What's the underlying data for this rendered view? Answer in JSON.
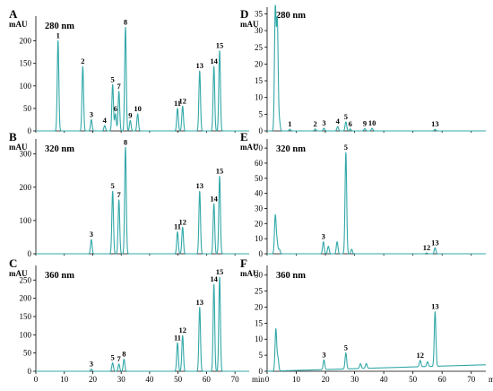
{
  "chart_data": [
    {
      "panel": "A",
      "wavelength": "280 nm",
      "ylabel": "mAU",
      "type": "line",
      "yticks": [
        0,
        50,
        100,
        150,
        200
      ],
      "xticks": [],
      "ylim": [
        0,
        255
      ],
      "xlim": [
        0,
        75
      ],
      "peaks": [
        {
          "label": "1",
          "t": 7.8,
          "h": 200
        },
        {
          "label": "2",
          "t": 16.5,
          "h": 143
        },
        {
          "label": "3",
          "t": 19.5,
          "h": 25
        },
        {
          "label": "4",
          "t": 24.2,
          "h": 12
        },
        {
          "label": "5",
          "t": 27.0,
          "h": 103
        },
        {
          "label": "6",
          "t": 28.0,
          "h": 38
        },
        {
          "label": "7",
          "t": 29.2,
          "h": 88
        },
        {
          "label": "8",
          "t": 31.5,
          "h": 230
        },
        {
          "label": "9",
          "t": 33.2,
          "h": 23
        },
        {
          "label": "10",
          "t": 35.8,
          "h": 38
        },
        {
          "label": "11",
          "t": 49.8,
          "h": 50
        },
        {
          "label": "12",
          "t": 51.6,
          "h": 55
        },
        {
          "label": "13",
          "t": 57.6,
          "h": 133
        },
        {
          "label": "14",
          "t": 62.6,
          "h": 143
        },
        {
          "label": "15",
          "t": 64.6,
          "h": 178
        }
      ]
    },
    {
      "panel": "B",
      "wavelength": "320 nm",
      "ylabel": "mAU",
      "type": "line",
      "yticks": [
        0,
        100,
        200,
        300
      ],
      "xticks": [],
      "ylim": [
        0,
        345
      ],
      "xlim": [
        0,
        75
      ],
      "peaks": [
        {
          "label": "3",
          "t": 19.5,
          "h": 43
        },
        {
          "label": "5",
          "t": 27.0,
          "h": 188
        },
        {
          "label": "7",
          "t": 29.2,
          "h": 162
        },
        {
          "label": "8",
          "t": 31.5,
          "h": 320
        },
        {
          "label": "11",
          "t": 49.8,
          "h": 66
        },
        {
          "label": "12",
          "t": 51.6,
          "h": 80
        },
        {
          "label": "13",
          "t": 57.6,
          "h": 188
        },
        {
          "label": "14",
          "t": 62.6,
          "h": 150
        },
        {
          "label": "15",
          "t": 64.6,
          "h": 233
        }
      ]
    },
    {
      "panel": "C",
      "wavelength": "360 nm",
      "ylabel": "mAU",
      "type": "line",
      "yticks": [
        0,
        50,
        100,
        150,
        200,
        250
      ],
      "xticks": [
        0,
        10,
        20,
        30,
        40,
        50,
        60,
        70
      ],
      "xunit": "min",
      "ylim": [
        0,
        290
      ],
      "xlim": [
        0,
        75
      ],
      "peaks": [
        {
          "label": "3",
          "t": 19.5,
          "h": 6
        },
        {
          "label": "5",
          "t": 27.0,
          "h": 23
        },
        {
          "label": "7",
          "t": 29.2,
          "h": 20
        },
        {
          "label": "8",
          "t": 31.0,
          "h": 33
        },
        {
          "label": "11",
          "t": 49.8,
          "h": 78
        },
        {
          "label": "12",
          "t": 51.6,
          "h": 98
        },
        {
          "label": "13",
          "t": 57.6,
          "h": 175
        },
        {
          "label": "14",
          "t": 62.6,
          "h": 238
        },
        {
          "label": "15",
          "t": 64.6,
          "h": 258
        }
      ]
    },
    {
      "panel": "D",
      "wavelength": "280 nm",
      "ylabel": "mAU",
      "type": "line",
      "yticks": [
        0,
        5,
        10,
        15,
        20,
        25,
        30,
        35
      ],
      "xticks": [],
      "ylim": [
        0,
        37
      ],
      "xlim": [
        0,
        75
      ],
      "peaks": [
        {
          "label": "",
          "t": 2.8,
          "h": 36.5
        },
        {
          "label": "",
          "t": 3.5,
          "h": 32
        },
        {
          "label": "",
          "t": 4.2,
          "h": 3
        },
        {
          "label": "1",
          "t": 7.8,
          "h": 0.5
        },
        {
          "label": "2",
          "t": 16.5,
          "h": 0.6
        },
        {
          "label": "3",
          "t": 19.5,
          "h": 0.8
        },
        {
          "label": "4",
          "t": 24.2,
          "h": 1.3
        },
        {
          "label": "5",
          "t": 27.0,
          "h": 2.7
        },
        {
          "label": "6",
          "t": 28.5,
          "h": 0.6
        },
        {
          "label": "9",
          "t": 33.5,
          "h": 0.7
        },
        {
          "label": "10",
          "t": 36.0,
          "h": 0.8
        },
        {
          "label": "13",
          "t": 57.6,
          "h": 0.5
        }
      ]
    },
    {
      "panel": "E",
      "wavelength": "320 nm",
      "ylabel": "mAU",
      "type": "line",
      "yticks": [
        0,
        10,
        20,
        30,
        40,
        50,
        60,
        70
      ],
      "xticks": [],
      "ylim": [
        0,
        76
      ],
      "xlim": [
        0,
        75
      ],
      "peaks": [
        {
          "label": "",
          "t": 2.8,
          "h": 25
        },
        {
          "label": "",
          "t": 3.4,
          "h": 8
        },
        {
          "label": "",
          "t": 4.2,
          "h": 3
        },
        {
          "label": "3",
          "t": 19.3,
          "h": 8
        },
        {
          "label": "",
          "t": 21.0,
          "h": 5
        },
        {
          "label": "",
          "t": 24.0,
          "h": 8
        },
        {
          "label": "5",
          "t": 27.0,
          "h": 67
        },
        {
          "label": "",
          "t": 29.0,
          "h": 3
        },
        {
          "label": "12",
          "t": 54.7,
          "h": 0.5
        },
        {
          "label": "13",
          "t": 57.6,
          "h": 4
        }
      ]
    },
    {
      "panel": "F",
      "wavelength": "360 nm",
      "ylabel": "mAU",
      "type": "line",
      "yticks": [
        0,
        5,
        10,
        15,
        20,
        25,
        30
      ],
      "xticks": [
        0,
        10,
        20,
        30,
        40,
        50,
        60,
        70
      ],
      "xunit": "min",
      "ylim": [
        0,
        33
      ],
      "xlim": [
        0,
        75
      ],
      "peaks": [
        {
          "label": "",
          "t": 3.0,
          "h": 13
        },
        {
          "label": "",
          "t": 3.7,
          "h": 4
        },
        {
          "label": "3",
          "t": 19.5,
          "h": 3
        },
        {
          "label": "5",
          "t": 27.0,
          "h": 5
        },
        {
          "label": "",
          "t": 32.0,
          "h": 1.5
        },
        {
          "label": "",
          "t": 34.0,
          "h": 1.5
        },
        {
          "label": "12",
          "t": 52.5,
          "h": 2
        },
        {
          "label": "",
          "t": 55.0,
          "h": 1.5
        },
        {
          "label": "13",
          "t": 57.6,
          "h": 17
        }
      ]
    }
  ]
}
